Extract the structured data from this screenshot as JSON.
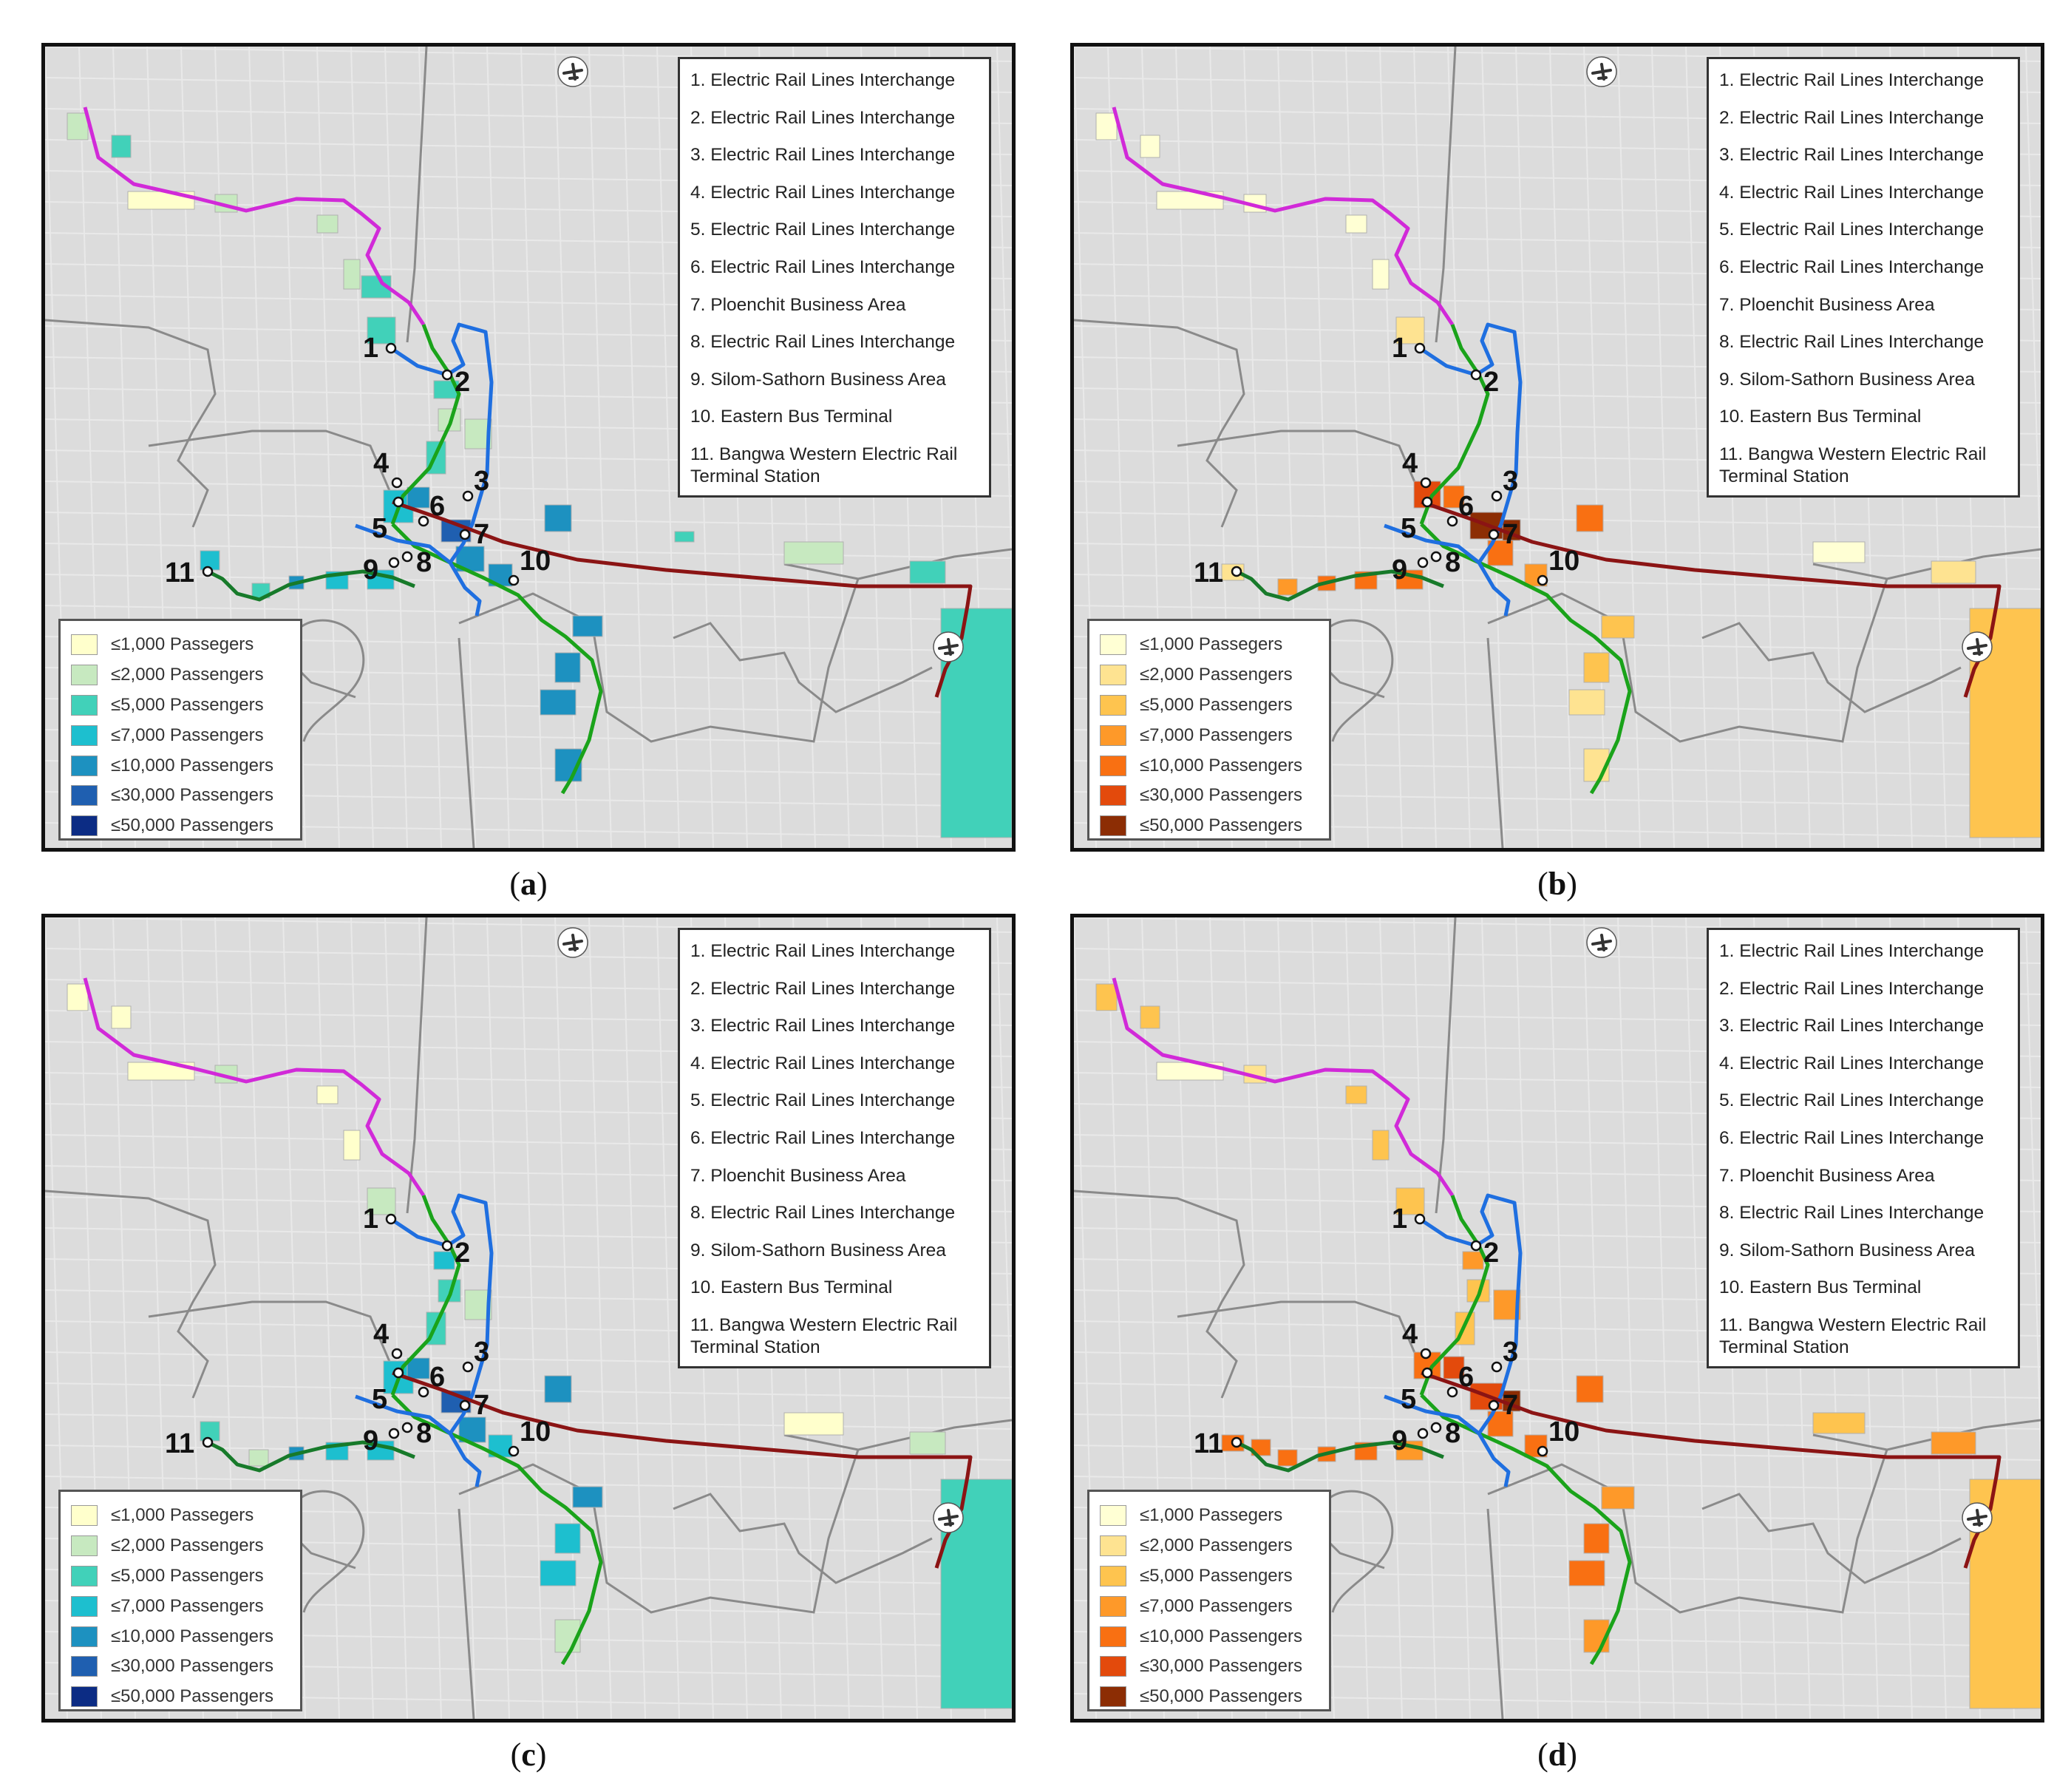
{
  "panels": [
    {
      "id": "a",
      "caption": "a",
      "palette": "blue"
    },
    {
      "id": "b",
      "caption": "b",
      "palette": "orange"
    },
    {
      "id": "c",
      "caption": "c",
      "palette": "blue"
    },
    {
      "id": "d",
      "caption": "d",
      "palette": "orange"
    }
  ],
  "locations": [
    "1. Electric Rail Lines Interchange",
    "2. Electric Rail Lines Interchange",
    "3. Electric Rail Lines Interchange",
    "4. Electric Rail Lines Interchange",
    "5. Electric Rail Lines Interchange",
    "6. Electric Rail Lines Interchange",
    "7. Ploenchit Business Area",
    "8. Electric Rail Lines Interchange",
    "9. Silom-Sathorn Business Area",
    "10. Eastern Bus Terminal",
    "11. Bangwa Western Electric Rail Terminal Station"
  ],
  "station_numbers": [
    "1",
    "2",
    "3",
    "4",
    "5",
    "6",
    "7",
    "8",
    "9",
    "10",
    "11"
  ],
  "legend_labels": [
    "≤1,000 Passegers",
    "≤2,000 Passengers",
    "≤5,000 Passengers",
    "≤7,000 Passengers",
    "≤10,000 Passengers",
    "≤30,000 Passengers",
    "≤50,000 Passengers"
  ],
  "palettes": {
    "blue": [
      "#ffffcc",
      "#c7e9c0",
      "#41d1b9",
      "#1dbfcf",
      "#1d91c0",
      "#1f5fb0",
      "#0c2c84"
    ],
    "orange": [
      "#ffffd4",
      "#fee391",
      "#fec44f",
      "#fe9929",
      "#f97012",
      "#e34a0c",
      "#8c2d04"
    ]
  },
  "line_colors": {
    "purple": "#d12ad8",
    "green": "#1aa31a",
    "blue": "#1f6fe0",
    "maroon": "#8b1414",
    "dark_green": "#177a2a"
  },
  "icons": [
    "airport-icon"
  ]
}
